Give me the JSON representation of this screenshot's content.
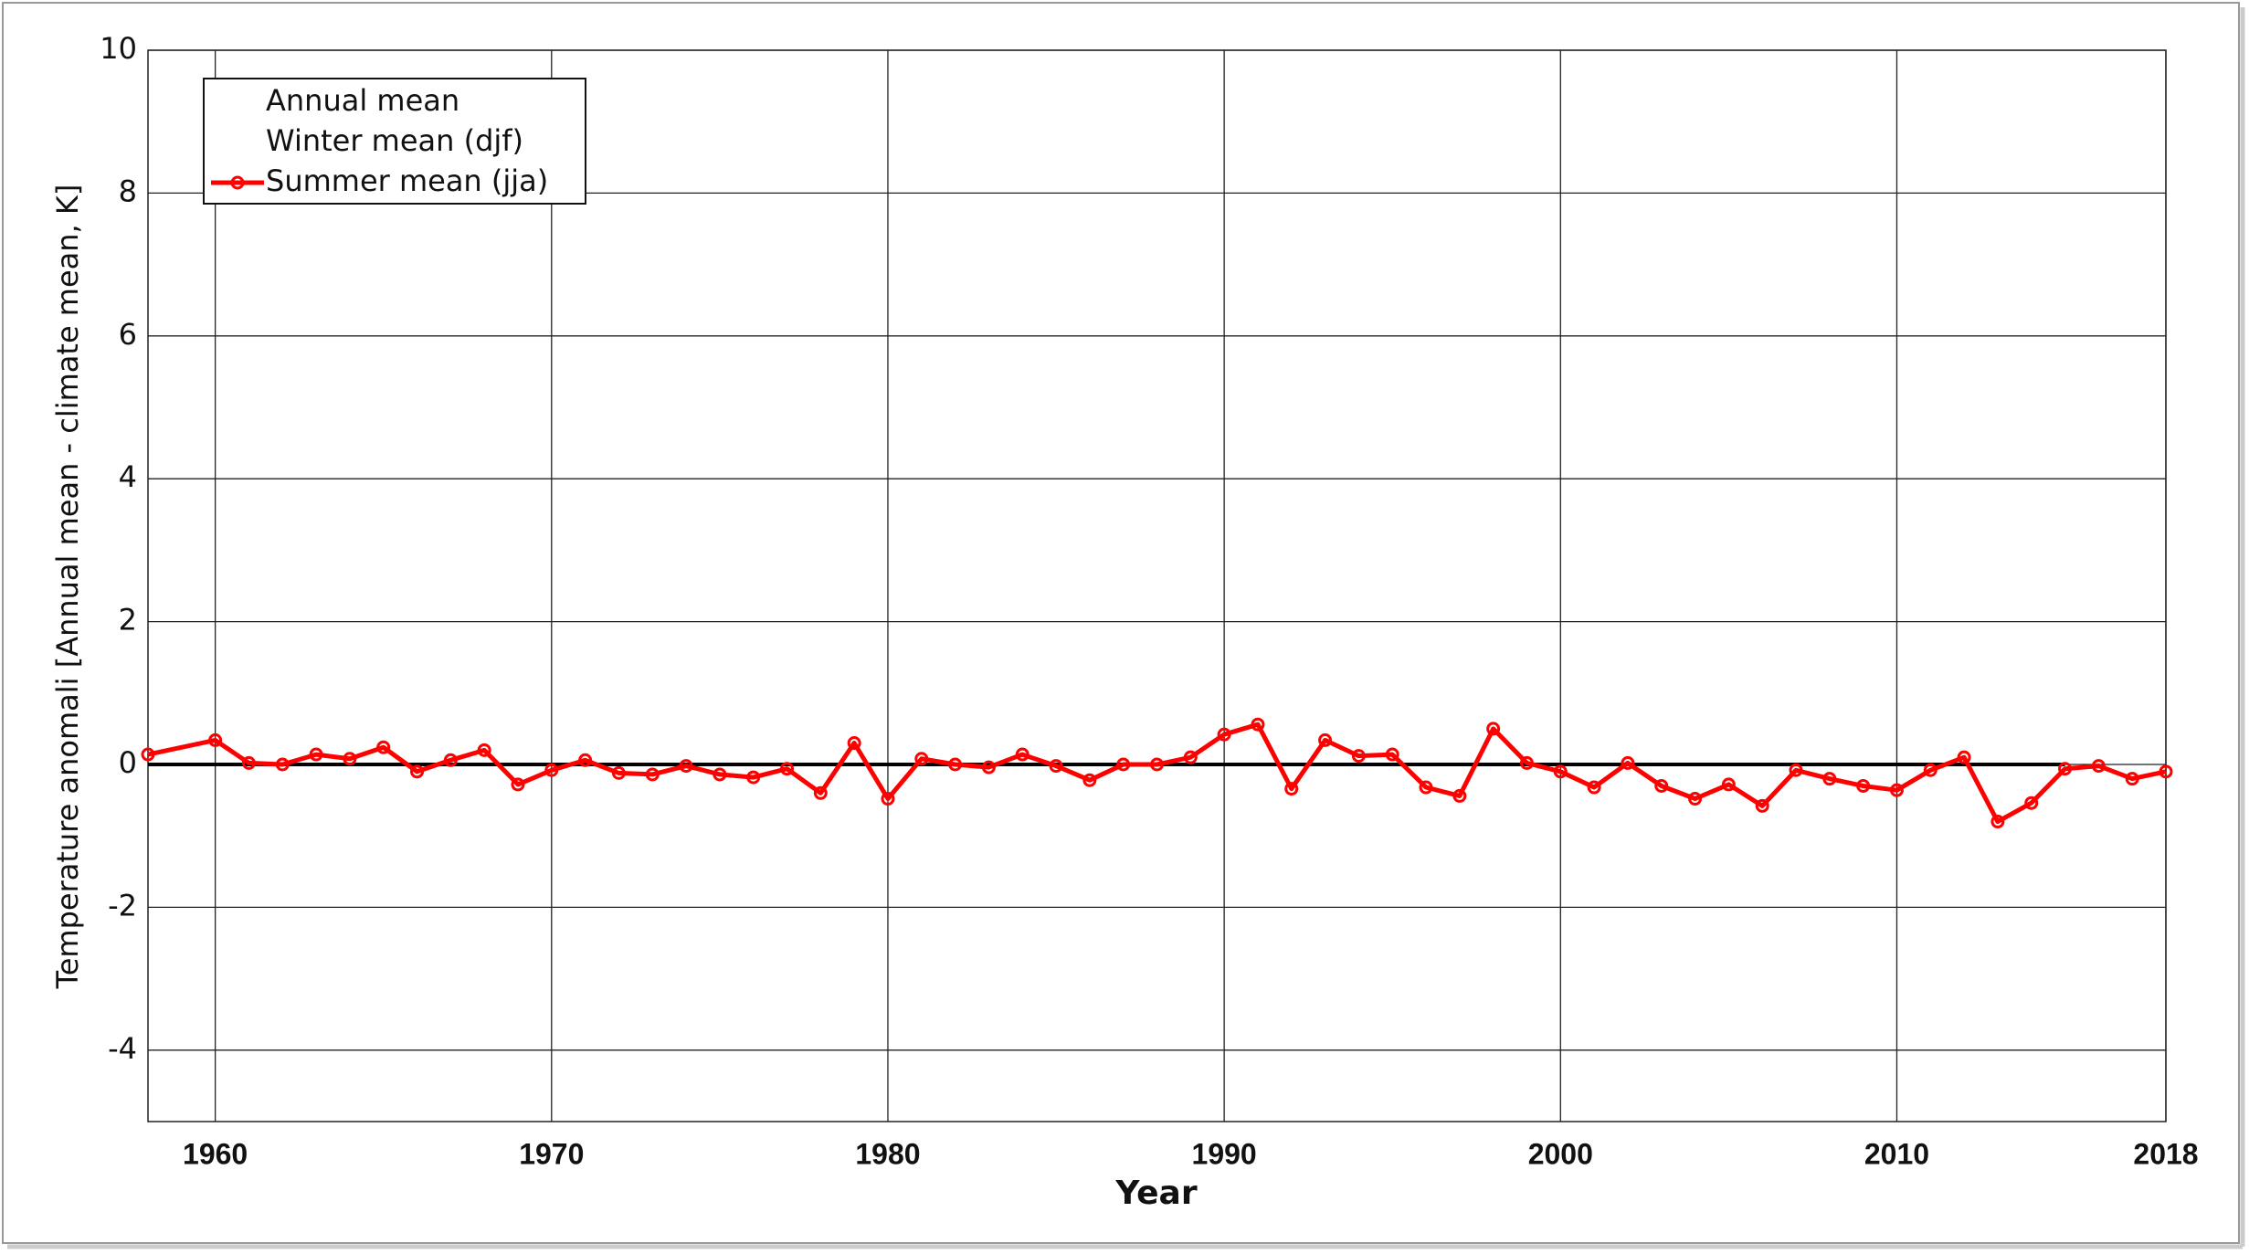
{
  "chart_data": {
    "type": "line",
    "x_label": "Year",
    "y_label": "Temperature anomali [Annual mean - climate mean, K]",
    "xlim": [
      1958,
      2018
    ],
    "xticks": [
      1960,
      1970,
      1980,
      1990,
      2000,
      2010,
      2018
    ],
    "ylim": [
      -5,
      10
    ],
    "yticks": [
      -4,
      -2,
      0,
      2,
      4,
      6,
      8,
      10
    ],
    "grid": true,
    "legend": "upper left",
    "series": [
      {
        "name": "Annual mean",
        "color": "#000000",
        "x": [
          1958,
          2015
        ],
        "values": [
          0,
          0
        ]
      },
      {
        "name": "Winter mean (djf)",
        "color": "#0000ff",
        "x": [],
        "values": []
      },
      {
        "name": "Summer mean (jja)",
        "color": "#ff0000",
        "x": [
          1958,
          1960,
          1961,
          1962,
          1963,
          1964,
          1965,
          1966,
          1967,
          1968,
          1969,
          1970,
          1971,
          1972,
          1973,
          1974,
          1975,
          1976,
          1977,
          1978,
          1979,
          1980,
          1981,
          1982,
          1983,
          1984,
          1985,
          1986,
          1987,
          1988,
          1989,
          1990,
          1991,
          1992,
          1993,
          1994,
          1995,
          1996,
          1997,
          1998,
          1999,
          2000,
          2001,
          2002,
          2003,
          2004,
          2005,
          2006,
          2007,
          2008,
          2009,
          2010,
          2011,
          2012,
          2013,
          2014,
          2015,
          2016,
          2017,
          2018
        ],
        "values": [
          0.14,
          0.34,
          0.02,
          0,
          0.14,
          0.08,
          0.24,
          -0.1,
          0.06,
          0.2,
          -0.28,
          -0.08,
          0.06,
          -0.12,
          -0.14,
          -0.02,
          -0.14,
          -0.18,
          -0.06,
          -0.4,
          0.3,
          -0.48,
          0.08,
          0,
          -0.04,
          0.14,
          -0.02,
          -0.22,
          0,
          0,
          0.1,
          0.42,
          0.56,
          -0.34,
          0.34,
          0.12,
          0.14,
          -0.32,
          -0.44,
          0.5,
          0.02,
          -0.1,
          -0.32,
          0.02,
          -0.3,
          -0.48,
          -0.28,
          -0.58,
          -0.08,
          -0.2,
          -0.3,
          -0.36,
          -0.08,
          0.1,
          -0.8,
          -0.54,
          -0.06,
          -0.02,
          -0.2,
          -0.1
        ]
      }
    ]
  }
}
